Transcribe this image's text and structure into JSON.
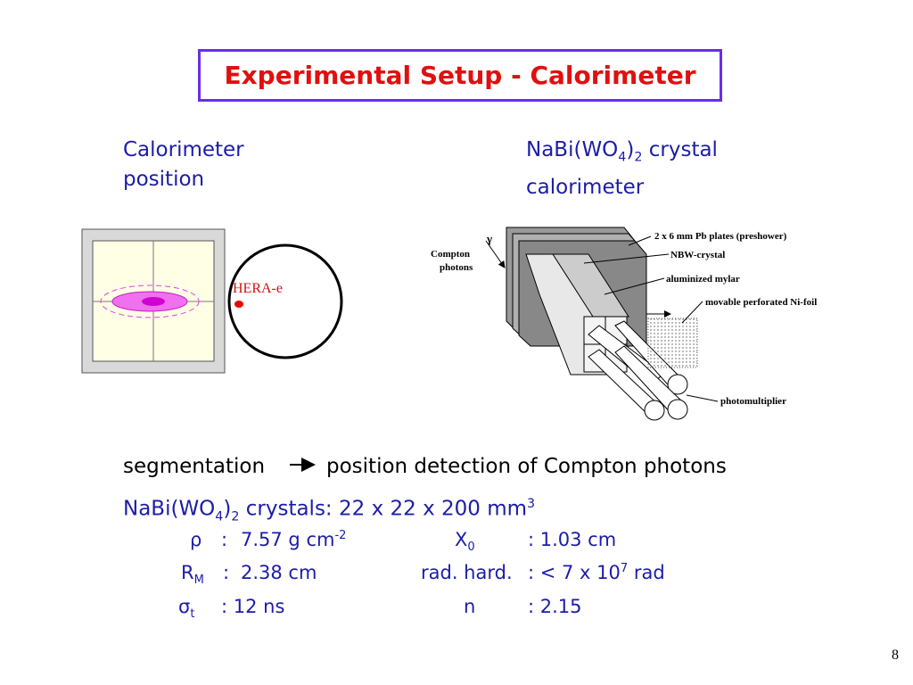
{
  "title": "Experimental Setup - Calorimeter",
  "left_heading": {
    "line1": "Calorimeter",
    "line2": "position"
  },
  "right_heading": {
    "line1": [
      "NaBi(WO",
      "4",
      ")",
      "2",
      " crystal"
    ],
    "line2": "calorimeter"
  },
  "left_figure": {
    "beam_label": "HERA-e"
  },
  "right_figure": {
    "compton": [
      "Compton",
      "photons"
    ],
    "gamma": "γ",
    "labels": [
      "2 x 6 mm Pb plates (preshower)",
      "NBW-crystal",
      "aluminized mylar",
      "movable perforated Ni-foil",
      "photomultiplier"
    ]
  },
  "segmentation": {
    "left": "segmentation",
    "right": "position detection of Compton photons"
  },
  "crystals": [
    "NaBi(WO",
    "4",
    ")",
    "2",
    " crystals: 22 x 22 x 200 mm",
    "3"
  ],
  "properties": {
    "row1": {
      "symbol": "ρ",
      "colon": ":",
      "value": "7.57 g cm",
      "value_sup": "-2",
      "name": "X",
      "name_sub": "0",
      "name_value": ": 1.03 cm"
    },
    "row2": {
      "symbol": "R",
      "symbol_sub": "M",
      "colon": ":",
      "value": "2.38 cm",
      "name": "rad. hard.",
      "name_value": ": < 7 x 10",
      "name_sup": "7",
      "name_unit": " rad"
    },
    "row3": {
      "symbol": "σ",
      "symbol_sub": "t",
      "value": ": 12 ns",
      "name": "n",
      "name_value": ": 2.15"
    }
  },
  "page_number": "8"
}
